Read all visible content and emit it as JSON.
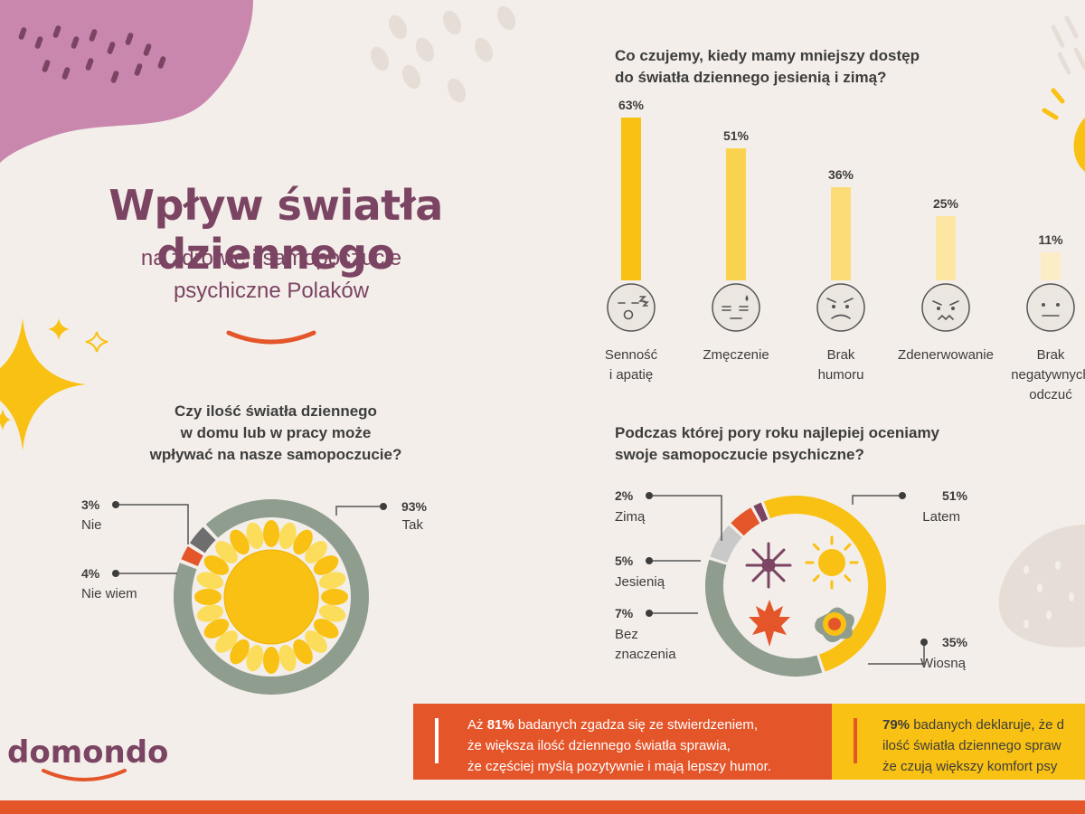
{
  "header": {
    "title": "Wpływ światła dziennego",
    "subtitle_line1": "na zdrowie i samopoczucie",
    "subtitle_line2": "psychiczne Polaków"
  },
  "logo": {
    "text": "domondo"
  },
  "colors": {
    "plum": "#7b4462",
    "yellow": "#f9c113",
    "orange": "#e4552a",
    "grey": "#8f9d8f",
    "pink": "#c987ae"
  },
  "q1": {
    "line1": "Czy ilość światła dziennego",
    "line2": "w domu lub w pracy może",
    "line3": "wpływać na nasze samopoczucie?"
  },
  "q2": {
    "line1": "Co czujemy, kiedy mamy mniejszy dostęp",
    "line2": "do światła dziennego jesienią i zimą?"
  },
  "q3": {
    "line1": "Podczas której pory roku najlepiej oceniamy",
    "line2": "swoje samopoczucie psychiczne?"
  },
  "chart_data": [
    {
      "type": "pie",
      "categories": [
        "Tak",
        "Nie",
        "Nie wiem"
      ],
      "values": [
        93,
        3,
        4
      ],
      "labels": [
        "93%",
        "3%",
        "4%"
      ],
      "colors": [
        "#8f9d8f",
        "#e4552a",
        "#6e6e6e"
      ]
    },
    {
      "type": "bar",
      "categories": [
        "Senność i apatię",
        "Zmęczenie",
        "Brak humoru",
        "Zdenerwowanie",
        "Brak negatywnych odczuć"
      ],
      "category_lines": [
        [
          "Senność",
          "i apatię"
        ],
        [
          "Zmęczenie"
        ],
        [
          "Brak",
          "humoru"
        ],
        [
          "Zdenerwowanie"
        ],
        [
          "Brak",
          "negatywnych",
          "odczuć"
        ]
      ],
      "values": [
        63,
        51,
        36,
        25,
        11
      ],
      "labels": [
        "63%",
        "51%",
        "36%",
        "25%",
        "11%"
      ],
      "colors": [
        "#f9c113",
        "#fbd24e",
        "#fcdc77",
        "#fde6a2",
        "#fdedc6"
      ],
      "icons": [
        "sleepy-face-icon",
        "tired-face-icon",
        "sad-face-icon",
        "angry-face-icon",
        "neutral-face-icon"
      ]
    },
    {
      "type": "pie",
      "categories": [
        "Latem",
        "Wiosną",
        "Bez znaczenia",
        "Jesienią",
        "Zimą"
      ],
      "values": [
        51,
        35,
        7,
        5,
        2
      ],
      "labels": [
        "51%",
        "35%",
        "7%",
        "5%",
        "2%"
      ],
      "colors": [
        "#f9c113",
        "#8f9d8f",
        "#c9c9c9",
        "#e4552a",
        "#7b4462"
      ],
      "label_lines": [
        [
          "Latem"
        ],
        [
          "Wiosną"
        ],
        [
          "Bez",
          "znaczenia"
        ],
        [
          "Jesienią"
        ],
        [
          "Zimą"
        ]
      ]
    }
  ],
  "callouts": {
    "left": {
      "pre": "Aż ",
      "highlight": "81%",
      "line1_rest": " badanych zgadza się ze stwierdzeniem,",
      "line2": "że większa ilość dziennego światła sprawia,",
      "line3": "że częściej myślą pozytywnie i mają lepszy humor."
    },
    "right": {
      "highlight": "79%",
      "line1_rest": " badanych deklaruje, że d",
      "line2": "ilość światła dziennego spraw",
      "line3": "że czują większy komfort psy"
    }
  }
}
